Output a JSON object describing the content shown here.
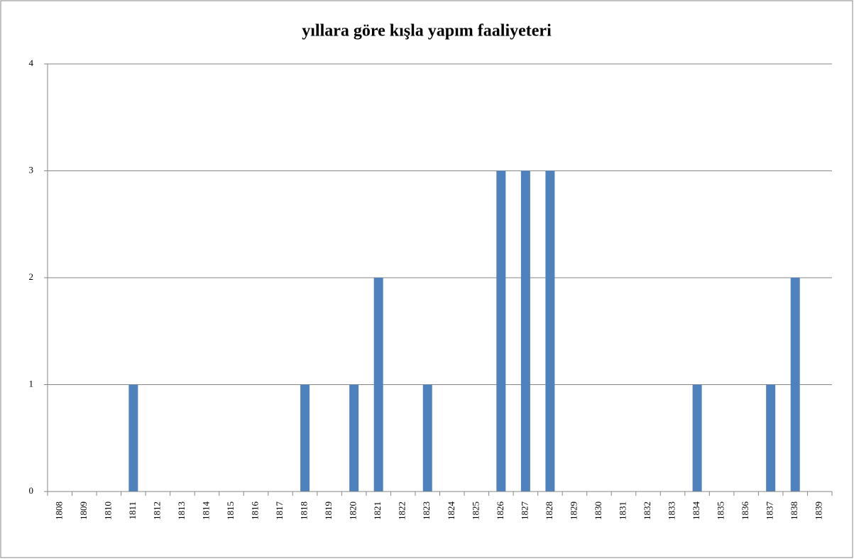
{
  "chart_data": {
    "type": "bar",
    "title": "yıllara göre kışla yapım faaliyeteri",
    "categories": [
      "1808",
      "1809",
      "1810",
      "1811",
      "1812",
      "1813",
      "1814",
      "1815",
      "1816",
      "1817",
      "1818",
      "1819",
      "1820",
      "1821",
      "1822",
      "1823",
      "1824",
      "1825",
      "1826",
      "1827",
      "1828",
      "1829",
      "1830",
      "1831",
      "1832",
      "1833",
      "1834",
      "1835",
      "1836",
      "1837",
      "1838",
      "1839"
    ],
    "values": [
      0,
      0,
      0,
      1,
      0,
      0,
      0,
      0,
      0,
      0,
      1,
      0,
      1,
      2,
      0,
      1,
      0,
      0,
      3,
      3,
      3,
      0,
      0,
      0,
      0,
      0,
      1,
      0,
      0,
      1,
      2,
      0
    ],
    "color": "#4f81bd",
    "ylim": [
      0,
      4
    ],
    "yticks": [
      0,
      1,
      2,
      3,
      4
    ],
    "grid": true
  }
}
